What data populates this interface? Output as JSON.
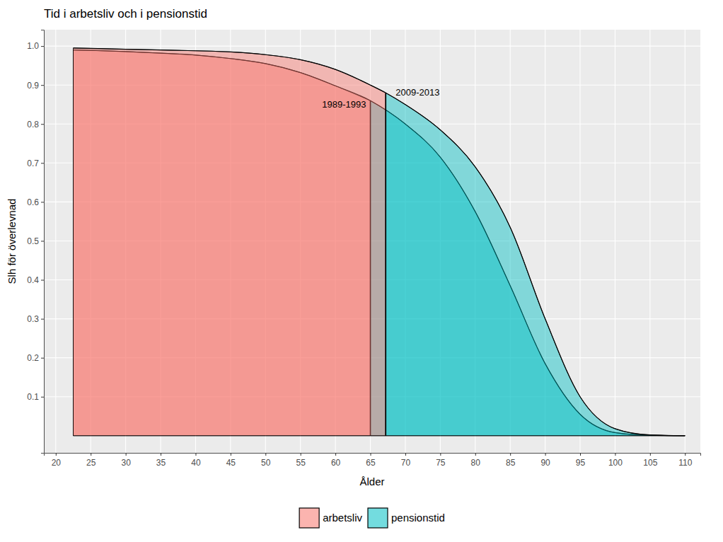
{
  "chart_data": {
    "type": "area",
    "title": "Tid i arbetsliv och i pensionstid",
    "x_label": "Ålder",
    "y_label": "Slh för överlevnad",
    "categories": [
      "arbetsliv",
      "pensionstid"
    ],
    "colors": [
      "#F8766D",
      "#00BFC4"
    ],
    "legend": "bottom",
    "grid": true,
    "xlim": [
      18.3,
      112.2
    ],
    "ylim": [
      -0.044,
      1.042
    ],
    "xticks": [
      20,
      25,
      30,
      35,
      40,
      45,
      50,
      55,
      60,
      65,
      70,
      75,
      80,
      85,
      90,
      95,
      100,
      105,
      110
    ],
    "yticks": [
      0.1,
      0.2,
      0.3,
      0.4,
      0.5,
      0.6,
      0.7,
      0.8,
      0.9,
      {
        "value": 1,
        "label": "1.0"
      }
    ],
    "series": [
      {
        "name": "1989-1993",
        "retirement_age": 65,
        "x": [
          22.5,
          25,
          30,
          35,
          40,
          45,
          50,
          55,
          60,
          65,
          70,
          75,
          80,
          85,
          90,
          95,
          100,
          105,
          110
        ],
        "values": [
          0.99,
          0.989,
          0.986,
          0.982,
          0.977,
          0.968,
          0.955,
          0.932,
          0.898,
          0.86,
          0.8,
          0.715,
          0.575,
          0.385,
          0.185,
          0.055,
          0.008,
          0.001,
          0
        ]
      },
      {
        "name": "2009-2013",
        "retirement_age": 67.2,
        "x": [
          22.5,
          25,
          30,
          35,
          40,
          45,
          50,
          55,
          60,
          65,
          67.2,
          70,
          75,
          80,
          85,
          90,
          95,
          100,
          105,
          110
        ],
        "values": [
          0.995,
          0.994,
          0.992,
          0.99,
          0.988,
          0.985,
          0.978,
          0.965,
          0.94,
          0.9,
          0.88,
          0.85,
          0.785,
          0.69,
          0.535,
          0.3,
          0.1,
          0.018,
          0.002,
          0
        ]
      }
    ]
  }
}
